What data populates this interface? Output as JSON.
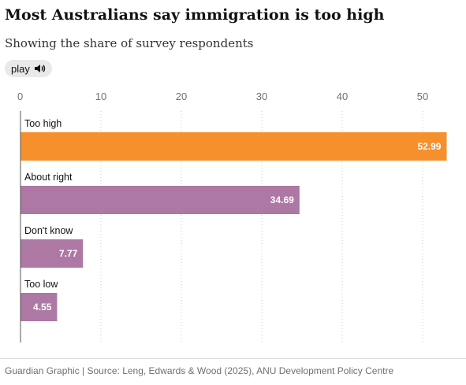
{
  "header": {
    "title": "Most Australians say immigration is too high",
    "subtitle": "Showing the share of survey respondents",
    "play_label": "play",
    "play_icon": "speaker-icon"
  },
  "footer": {
    "source": "Guardian Graphic | Source: Leng, Edwards & Wood (2025), ANU Development Policy Centre"
  },
  "chart_data": {
    "type": "bar",
    "orientation": "horizontal",
    "title": "Most Australians say immigration is too high",
    "subtitle": "Showing the share of survey respondents",
    "xlabel": "",
    "ylabel": "",
    "xlim": [
      0,
      53.5
    ],
    "xticks": [
      0,
      10,
      20,
      30,
      40,
      50
    ],
    "grid": "vertical-dotted",
    "categories": [
      "Too high",
      "About right",
      "Don't know",
      "Too low"
    ],
    "values": [
      52.99,
      34.69,
      7.77,
      4.55
    ],
    "value_labels": [
      "52.99",
      "34.69",
      "7.77",
      "4.55"
    ],
    "colors": [
      "#f5902c",
      "#ad78a4",
      "#ad78a4",
      "#ad78a4"
    ]
  }
}
